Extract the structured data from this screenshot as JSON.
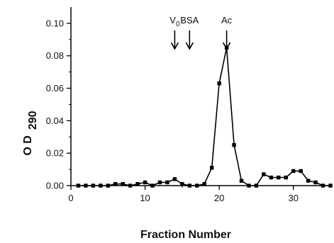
{
  "chart_data": {
    "type": "line",
    "title": "",
    "xlabel": "Fraction Number",
    "ylabel": "O D",
    "ylabel_sub": "290",
    "xlim": [
      0,
      35
    ],
    "ylim": [
      0,
      0.11
    ],
    "xticks": [
      0,
      10,
      20,
      30
    ],
    "yticks": [
      0.0,
      0.02,
      0.04,
      0.06,
      0.08,
      0.1
    ],
    "ytick_labels": [
      "0.00",
      "0.02",
      "0.04",
      "0.06",
      "0.08",
      "0.10"
    ],
    "grid": false,
    "legend": "none",
    "marker": "square",
    "series": [
      {
        "x": [
          1,
          2,
          3,
          4,
          5,
          6,
          7,
          8,
          9,
          10,
          11,
          12,
          13,
          14,
          15,
          16,
          17,
          18,
          19,
          20,
          21,
          22,
          23,
          24,
          25,
          26,
          27,
          28,
          29,
          30,
          31,
          32,
          33,
          34,
          35
        ],
        "values": [
          0.0,
          0.0,
          0.0,
          0.0,
          0.0,
          0.001,
          0.001,
          0.0,
          0.001,
          0.002,
          0.0,
          0.002,
          0.002,
          0.004,
          0.001,
          0.0,
          0.0,
          0.001,
          0.011,
          0.063,
          0.085,
          0.025,
          0.003,
          0.0,
          0.0,
          0.007,
          0.005,
          0.005,
          0.005,
          0.009,
          0.009,
          0.003,
          0.002,
          0.0,
          0.0
        ]
      }
    ],
    "annotations": [
      {
        "label": "V",
        "sub": "0",
        "x": 14
      },
      {
        "label": "BSA",
        "x": 16
      },
      {
        "label": "Ac",
        "x": 21
      }
    ]
  }
}
